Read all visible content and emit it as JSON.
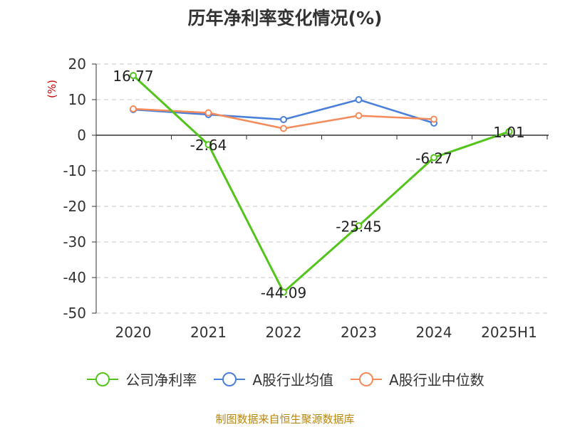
{
  "chart_data": {
    "type": "line",
    "title": "历年净利率变化情况(%)",
    "ylabel": "(%)",
    "xlabel": "",
    "categories": [
      "2020",
      "2021",
      "2022",
      "2023",
      "2024",
      "2025H1"
    ],
    "ylim": [
      -50,
      20
    ],
    "yticks": [
      20,
      10,
      0,
      -10,
      -20,
      -30,
      -40,
      -50
    ],
    "grid": true,
    "legend_position": "bottom",
    "series": [
      {
        "name": "公司净利率",
        "color": "#52c41a",
        "values": [
          16.77,
          -2.64,
          -44.09,
          -25.45,
          -6.27,
          1.01
        ],
        "labels": [
          "16.77",
          "-2.64",
          "-44.09",
          "-25.45",
          "-6.27",
          "1.01"
        ]
      },
      {
        "name": "A股行业均值",
        "color": "#4a7fd9",
        "values": [
          7.2,
          5.8,
          4.4,
          10.0,
          3.4,
          null
        ]
      },
      {
        "name": "A股行业中位数",
        "color": "#f58b5a",
        "values": [
          7.4,
          6.3,
          1.9,
          5.5,
          4.5,
          null
        ]
      }
    ]
  },
  "source_note": "制图数据来自恒生聚源数据库"
}
